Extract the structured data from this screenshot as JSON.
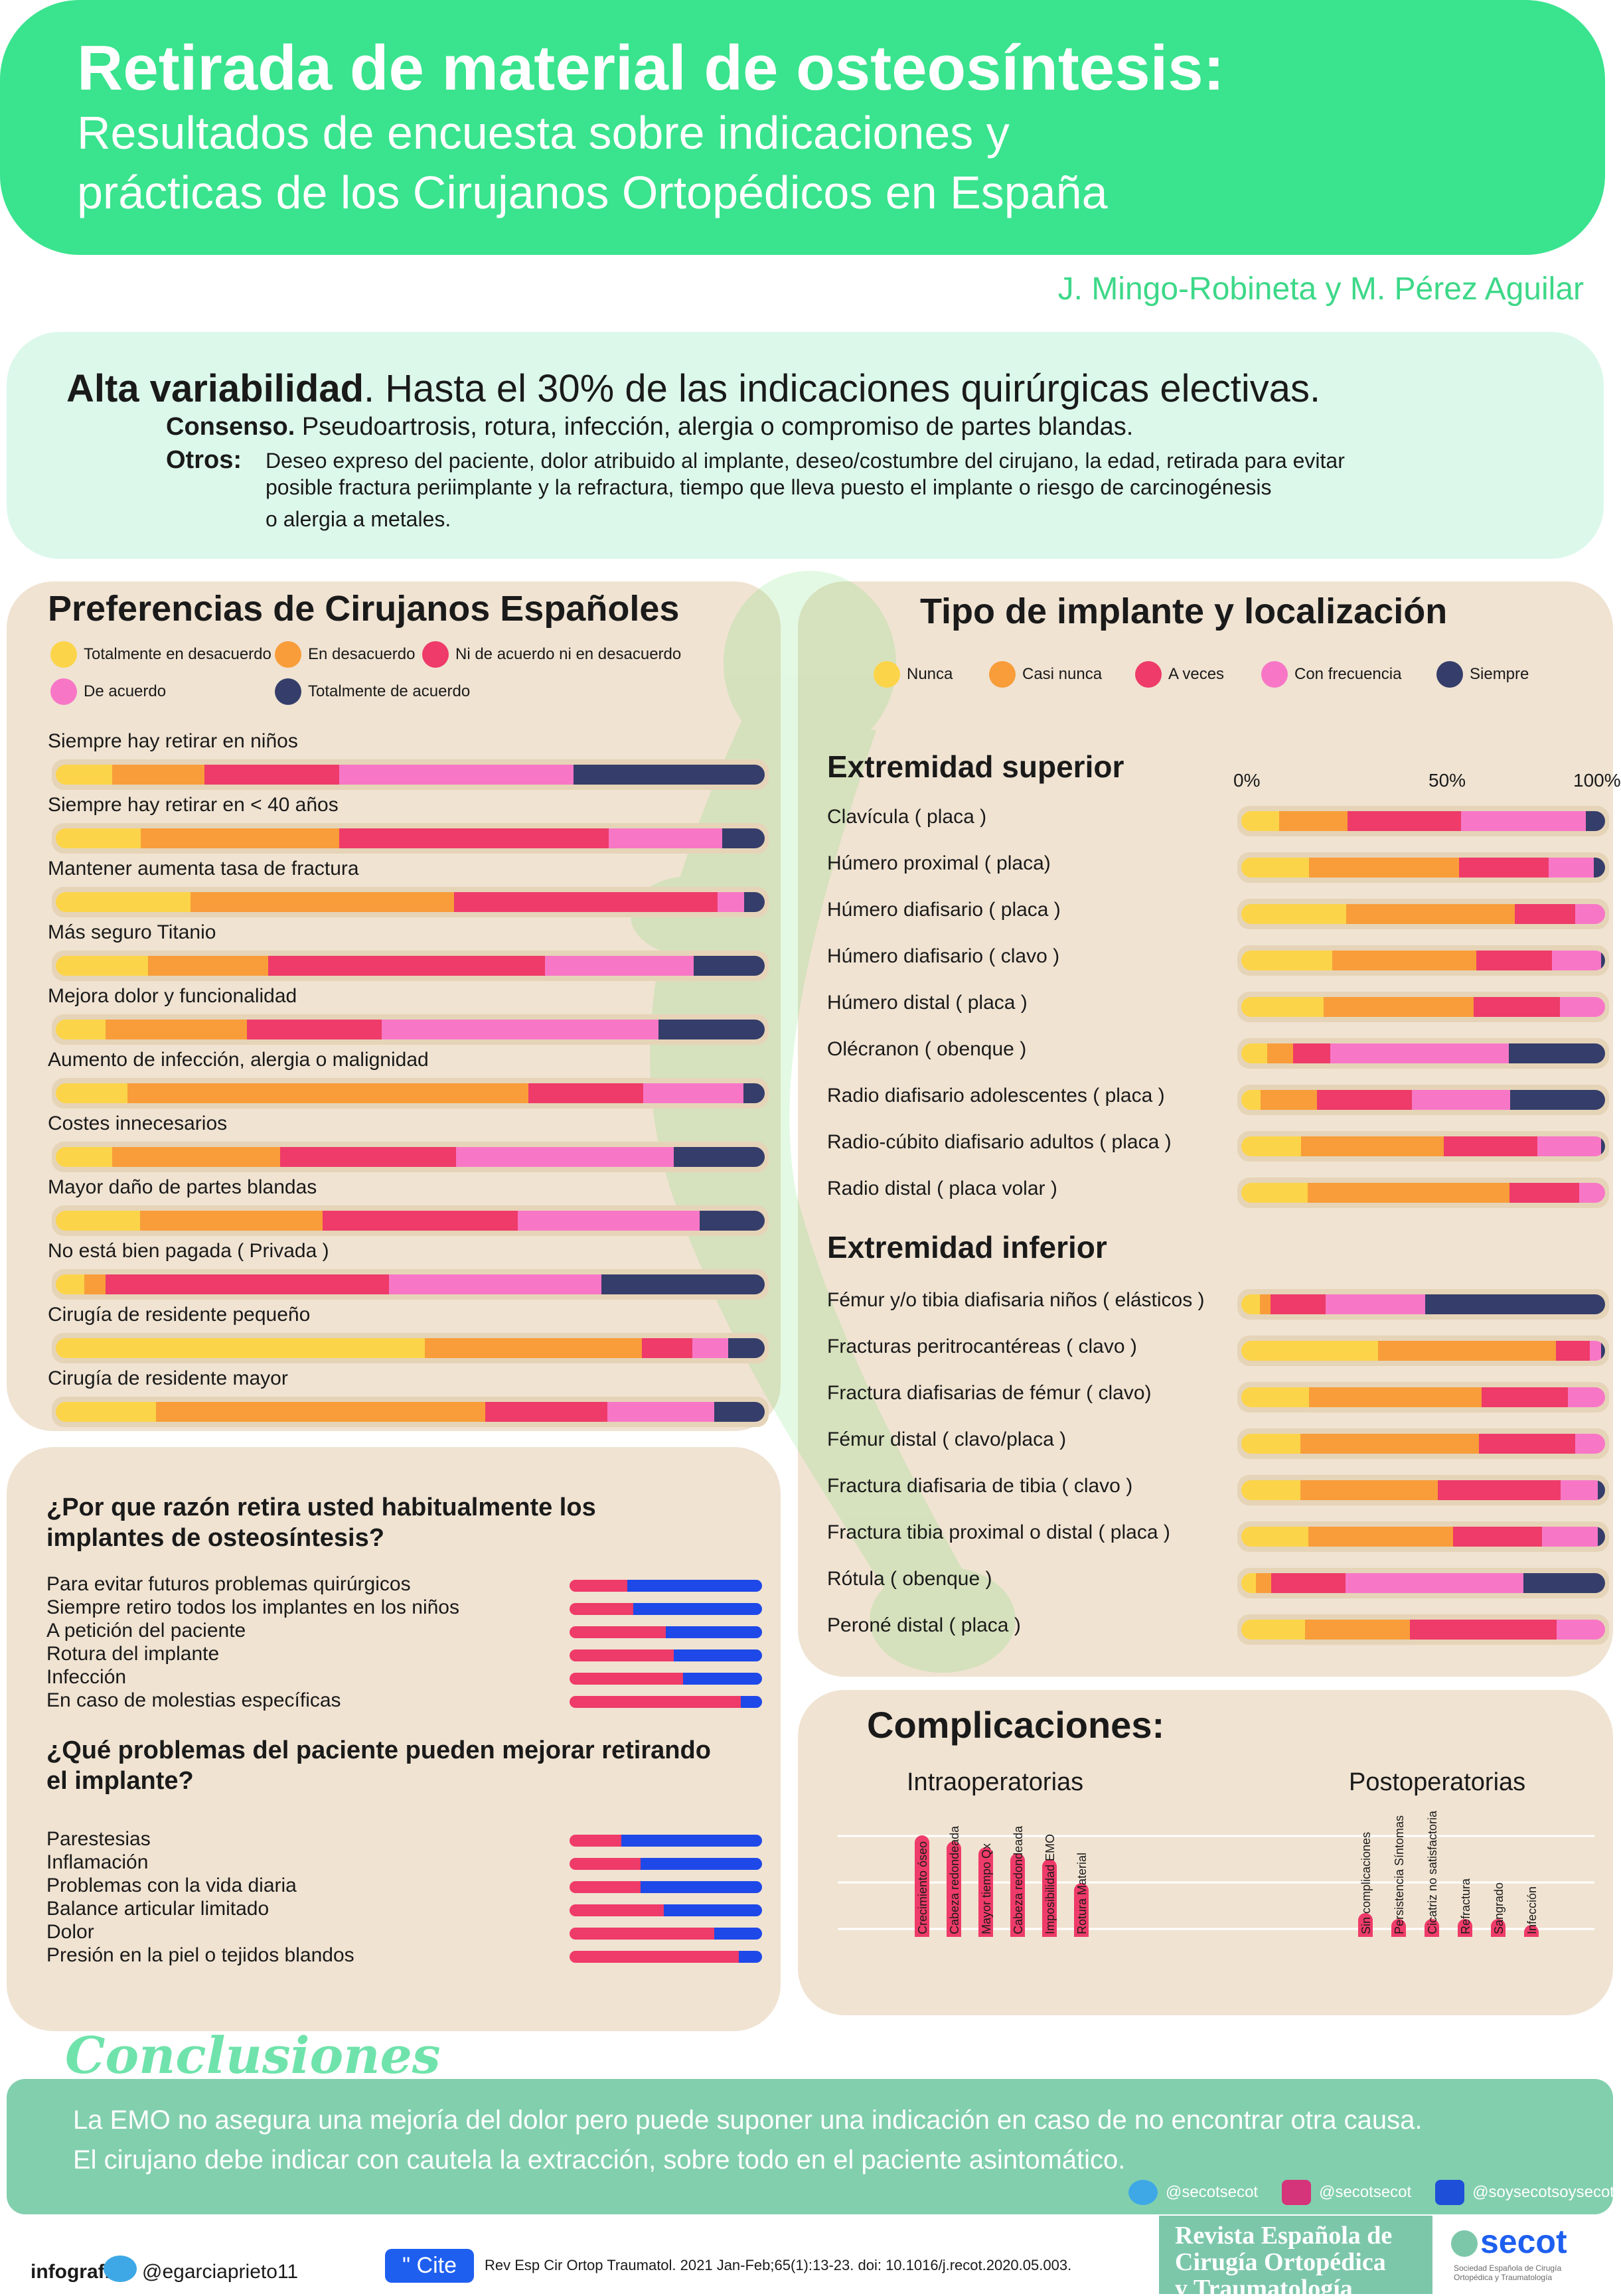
{
  "header": {
    "title": "Retirada de material de osteosíntesis:",
    "subtitle_line1": "Resultados de encuesta sobre indicaciones y",
    "subtitle_line2": "prácticas de los Cirujanos Ortopédicos en España",
    "authors": "J. Mingo-Robineta y M. Pérez Aguilar"
  },
  "summary": {
    "headline_bold": "Alta variabilidad",
    "headline_rest": ". Hasta el 30% de las indicaciones quirúrgicas electivas.",
    "consensus_label": "Consenso.",
    "consensus_text": "Pseudoartrosis, rotura, infección, alergia o compromiso de partes blandas.",
    "others_label": "Otros",
    "others_colon": ":",
    "others_line1": "Deseo expreso del paciente, dolor atribuido al implante, deseo/costumbre del cirujano, la edad, retirada para evitar",
    "others_line2": "posible fractura periimplante y la refractura, tiempo que lleva puesto el implante o riesgo de carcinogénesis",
    "others_line3": "o alergia a metales."
  },
  "colors": {
    "c1": "#fcd449",
    "c2": "#f89d3a",
    "c3": "#ee3b69",
    "c4": "#f777c6",
    "c5": "#353d6a"
  },
  "preferences": {
    "title": "Preferencias de Cirujanos Españoles",
    "legend": [
      "Totalmente en desacuerdo",
      "En desacuerdo",
      "Ni de acuerdo ni en desacuerdo",
      "De acuerdo",
      "Totalmente de acuerdo"
    ]
  },
  "implants": {
    "title": "Tipo de implante y localización",
    "legend": [
      "Nunca",
      "Casi nunca",
      "A veces",
      "Con frecuencia",
      "Siempre"
    ],
    "upper_title": "Extremidad superior",
    "lower_title": "Extremidad inferior",
    "axis_ticks": [
      "0%",
      "50%",
      "100%"
    ]
  },
  "chart_data": [
    {
      "type": "bar",
      "orientation": "horizontal-stacked",
      "title": "Preferencias de Cirujanos Españoles",
      "series_names": [
        "Totalmente en desacuerdo",
        "En desacuerdo",
        "Ni de acuerdo ni en desacuerdo",
        "De acuerdo",
        "Totalmente de acuerdo"
      ],
      "categories": [
        "Siempre hay retirar en niños",
        "Siempre hay retirar en < 40 años",
        "Mantener aumenta tasa de fractura",
        "Más seguro Titanio",
        "Mejora dolor y funcionalidad",
        "Aumento de infección, alergia o malignidad",
        "Costes innecesarios",
        "Mayor daño de partes blandas",
        "No está bien pagada ( Privada )",
        "Cirugía de residente pequeño",
        "Cirugía de residente mayor"
      ],
      "values": [
        [
          8,
          13,
          19,
          33,
          27
        ],
        [
          12,
          28,
          38,
          16,
          6
        ],
        [
          20,
          39,
          39,
          4,
          3
        ],
        [
          13,
          17,
          39,
          21,
          10
        ],
        [
          7,
          20,
          19,
          39,
          15
        ],
        [
          10,
          56,
          16,
          14,
          3
        ],
        [
          8,
          24,
          25,
          31,
          13
        ],
        [
          13,
          28,
          30,
          28,
          10
        ],
        [
          4,
          3,
          40,
          30,
          23
        ],
        [
          51,
          30,
          7,
          5,
          5
        ],
        [
          14,
          46,
          17,
          15,
          7
        ]
      ]
    },
    {
      "type": "bar",
      "orientation": "horizontal-stacked",
      "title": "Extremidad superior",
      "series_names": [
        "Nunca",
        "Casi nunca",
        "A veces",
        "Con frecuencia",
        "Siempre"
      ],
      "categories": [
        "Clavícula ( placa )",
        "Húmero proximal ( placa)",
        "Húmero diafisario ( placa )",
        "Húmero diafisario ( clavo )",
        "Húmero distal ( placa )",
        "Olécranon ( obenque )",
        "Radio diafisario adolescentes ( placa )",
        "Radio-cúbito diafisario adultos ( placa )",
        "Radio distal ( placa volar )"
      ],
      "values": [
        [
          10,
          18,
          30,
          33,
          5
        ],
        [
          18,
          40,
          24,
          12,
          3
        ],
        [
          28,
          45,
          16,
          8,
          0
        ],
        [
          24,
          38,
          20,
          13,
          1
        ],
        [
          22,
          40,
          23,
          12,
          0
        ],
        [
          7,
          7,
          10,
          48,
          26
        ],
        [
          5,
          15,
          25,
          26,
          25
        ],
        [
          16,
          38,
          25,
          17,
          1
        ],
        [
          18,
          55,
          19,
          7,
          0
        ]
      ],
      "xlim": [
        0,
        100
      ]
    },
    {
      "type": "bar",
      "orientation": "horizontal-stacked",
      "title": "Extremidad inferior",
      "series_names": [
        "Nunca",
        "Casi nunca",
        "A veces",
        "Con frecuencia",
        "Siempre"
      ],
      "categories": [
        "Fémur y/o tibia diafisaria niños ( elásticos )",
        "Fracturas peritrocantéreas ( clavo )",
        "Fractura diafisarias de fémur ( clavo)",
        "Fémur distal ( clavo/placa )",
        "Fractura diafisaria de tibia ( clavo )",
        "Fractura tibia proximal o distal ( placa )",
        "Rótula ( obenque )",
        "Peroné distal ( placa )"
      ],
      "values": [
        [
          5,
          3,
          15,
          27,
          49
        ],
        [
          36,
          47,
          9,
          3,
          1
        ],
        [
          18,
          46,
          23,
          10,
          0
        ],
        [
          16,
          48,
          26,
          8,
          0
        ],
        [
          16,
          37,
          33,
          10,
          2
        ],
        [
          18,
          39,
          24,
          15,
          2
        ],
        [
          4,
          4,
          20,
          48,
          22
        ],
        [
          17,
          28,
          39,
          13,
          0
        ]
      ],
      "xlim": [
        0,
        100
      ]
    },
    {
      "type": "bar",
      "orientation": "horizontal-stacked",
      "title": "¿Por que razón retira usted habitualmente los implantes de osteosíntesis?",
      "categories": [
        "Para evitar futuros problemas quirúrgicos",
        "Siempre retiro todos los implantes en los niños",
        "A petición del paciente",
        "Rotura del implante",
        "Infección",
        "En caso de molestias específicas"
      ],
      "series_names": [
        "pink",
        "blue"
      ],
      "values": [
        [
          30,
          70
        ],
        [
          33,
          67
        ],
        [
          50,
          50
        ],
        [
          54,
          46
        ],
        [
          59,
          41
        ],
        [
          89,
          11
        ]
      ]
    },
    {
      "type": "bar",
      "orientation": "horizontal-stacked",
      "title": "¿Qué problemas del paciente pueden mejorar retirando el implante?",
      "categories": [
        "Parestesias",
        "Inflamación",
        "Problemas con la vida diaria",
        "Balance articular limitado",
        "Dolor",
        "Presión en la piel o tejidos blandos"
      ],
      "series_names": [
        "pink",
        "blue"
      ],
      "values": [
        [
          27,
          73
        ],
        [
          37,
          63
        ],
        [
          37,
          63
        ],
        [
          49,
          51
        ],
        [
          75,
          25
        ],
        [
          88,
          12
        ]
      ]
    },
    {
      "type": "bar",
      "title": "Complicaciones: Intraoperatorias",
      "categories": [
        "Crecimiento óseo",
        "Cabeza redondeada",
        "Mayor tiempo Qx",
        "Cabeza redondeada",
        "Imposibilidad EMO",
        "Rotura Material"
      ],
      "values": [
        17,
        16,
        15,
        14,
        13,
        9
      ],
      "ylim": [
        0,
        20
      ]
    },
    {
      "type": "bar",
      "title": "Complicaciones: Postoperatorias",
      "categories": [
        "Sin complicaciones",
        "Persistencia Síntomas",
        "Cicatriz no satisfactoria",
        "Refractura",
        "Sangrado",
        "Infección"
      ],
      "values": [
        4,
        3,
        3,
        3,
        3,
        2
      ],
      "ylim": [
        0,
        20
      ]
    }
  ],
  "reasons": {
    "q1_line1": "¿Por que razón retira usted habitualmente los",
    "q1_line2": "implantes de osteosíntesis?",
    "q2_line1": "¿Qué problemas del paciente pueden mejorar retirando",
    "q2_line2": "el implante?"
  },
  "complications": {
    "title": "Complicaciones:",
    "intra": "Intraoperatorias",
    "post": "Postoperatorias"
  },
  "conclusions": {
    "title": "Conclusiones",
    "line1": "La EMO no asegura una mejoría del dolor pero puede suponer una indicación  en caso de no encontrar otra causa.",
    "line2": "El cirujano debe indicar con cautela la extracción, sobre todo en el paciente asintomático.",
    "twitter": "@secotsecot",
    "instagram": "@secotsecot",
    "facebook": "@soysecotsoysecot"
  },
  "footer": {
    "infografia": "infografía",
    "handle": "@egarciaprieto11",
    "cite": "\" Cite",
    "reference": "Rev Esp Cir Ortop Traumatol. 2021 Jan-Feb;65(1):13-23. doi: 10.1016/j.recot.2020.05.003.",
    "journal_line1": "Revista Española de",
    "journal_line2": "Cirugía Ortopédica",
    "journal_line3": "y Traumatología",
    "secot": "secot",
    "secot_sub": "Sociedad Española de Cirugía Ortopédica y Traumatología"
  }
}
